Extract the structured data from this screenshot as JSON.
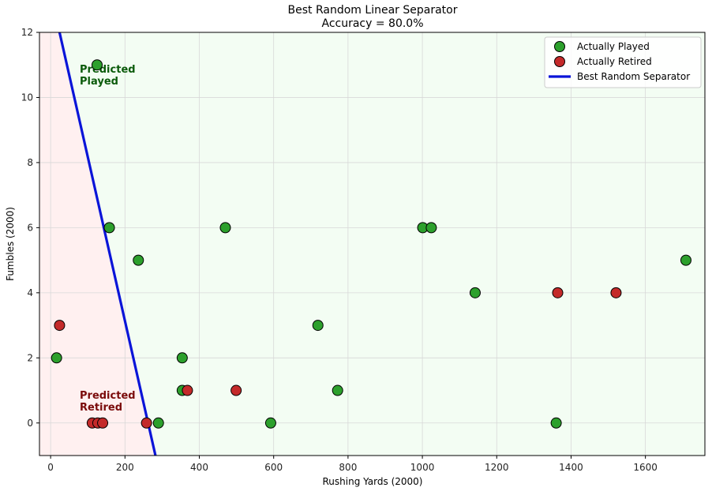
{
  "chart_data": {
    "type": "scatter",
    "title": "Best Random Linear Separator",
    "subtitle": "Accuracy = 80.0%",
    "xlabel": "Rushing Yards (2000)",
    "ylabel": "Fumbles (2000)",
    "xlim": [
      -30,
      1760
    ],
    "ylim": [
      -1,
      12
    ],
    "xticks": [
      0,
      200,
      400,
      600,
      800,
      1000,
      1200,
      1400,
      1600
    ],
    "yticks": [
      0,
      2,
      4,
      6,
      8,
      10,
      12
    ],
    "grid": true,
    "legend_position": "top-right",
    "series": [
      {
        "name": "Actually Played",
        "color": "#2ca02c",
        "points": [
          {
            "x": 125,
            "y": 11
          },
          {
            "x": 158,
            "y": 6
          },
          {
            "x": 236,
            "y": 5
          },
          {
            "x": 470,
            "y": 6
          },
          {
            "x": 16,
            "y": 2
          },
          {
            "x": 354,
            "y": 2
          },
          {
            "x": 354,
            "y": 1
          },
          {
            "x": 290,
            "y": 0
          },
          {
            "x": 592,
            "y": 0
          },
          {
            "x": 719,
            "y": 3
          },
          {
            "x": 772,
            "y": 1
          },
          {
            "x": 1001,
            "y": 6
          },
          {
            "x": 1024,
            "y": 6
          },
          {
            "x": 1142,
            "y": 4
          },
          {
            "x": 1360,
            "y": 0
          },
          {
            "x": 1709,
            "y": 5
          }
        ]
      },
      {
        "name": "Actually Retired",
        "color": "#c42a2a",
        "points": [
          {
            "x": 24,
            "y": 3
          },
          {
            "x": 112,
            "y": 0
          },
          {
            "x": 127,
            "y": 0
          },
          {
            "x": 140,
            "y": 0
          },
          {
            "x": 258,
            "y": 0
          },
          {
            "x": 368,
            "y": 1
          },
          {
            "x": 499,
            "y": 1
          },
          {
            "x": 1364,
            "y": 4
          },
          {
            "x": 1521,
            "y": 4
          }
        ]
      }
    ],
    "separator": {
      "name": "Best Random Separator",
      "color": "#0a14d8",
      "points": [
        {
          "x": 24,
          "y": 12
        },
        {
          "x": 282,
          "y": -1
        }
      ]
    },
    "regions": [
      {
        "label_line1": "Predicted",
        "label_line2": "Played",
        "color": "#0a5a0a",
        "fill": "#f3fdf3"
      },
      {
        "label_line1": "Predicted",
        "label_line2": "Retired",
        "color": "#7a0a0a",
        "fill": "#fff0f0"
      }
    ]
  }
}
